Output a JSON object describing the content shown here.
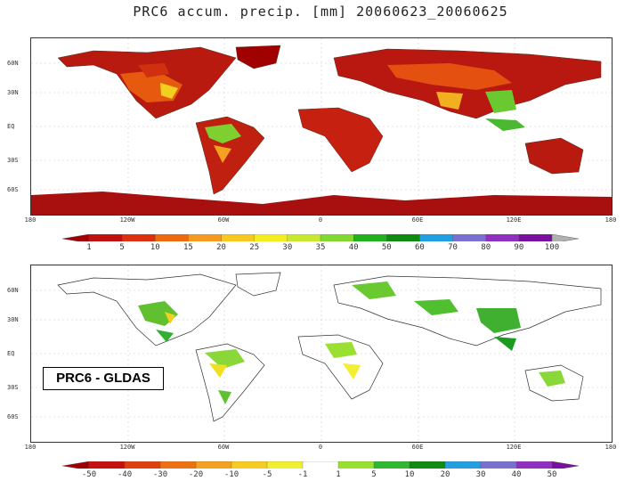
{
  "title": "PRC6  accum. precip. [mm] 20060623_20060625",
  "map1": {
    "lat_labels": [
      "60N",
      "30N",
      "EQ",
      "30S",
      "60S"
    ],
    "lon_labels": [
      "180",
      "120W",
      "60W",
      "0",
      "60E",
      "120E",
      "180"
    ],
    "colorbar": {
      "ticks": [
        "1",
        "5",
        "10",
        "15",
        "20",
        "25",
        "30",
        "35",
        "40",
        "50",
        "60",
        "70",
        "80",
        "90",
        "100"
      ],
      "colors": [
        "#a00000",
        "#c01010",
        "#dd3010",
        "#ee6a10",
        "#f49a20",
        "#f6c820",
        "#f2ee20",
        "#c8e830",
        "#82d830",
        "#20b020",
        "#108a10",
        "#20a0e0",
        "#7a70d0",
        "#9030c0",
        "#7a10a0",
        "#b0b0b0"
      ]
    }
  },
  "map2": {
    "label": "PRC6 - GLDAS",
    "lat_labels": [
      "60N",
      "30N",
      "EQ",
      "30S",
      "60S"
    ],
    "lon_labels": [
      "180",
      "120W",
      "60W",
      "0",
      "60E",
      "120E",
      "180"
    ],
    "colorbar": {
      "ticks": [
        "-50",
        "-40",
        "-30",
        "-20",
        "-10",
        "-5",
        "-1",
        "1",
        "5",
        "10",
        "20",
        "30",
        "40",
        "50"
      ],
      "colors": [
        "#a00000",
        "#c81010",
        "#e04010",
        "#ee7010",
        "#f4a020",
        "#f6cc20",
        "#f2ee30",
        "#ffffff",
        "#9ae030",
        "#30b830",
        "#108a10",
        "#20a0e0",
        "#7a70d0",
        "#9030c0",
        "#7a10a0"
      ]
    }
  }
}
